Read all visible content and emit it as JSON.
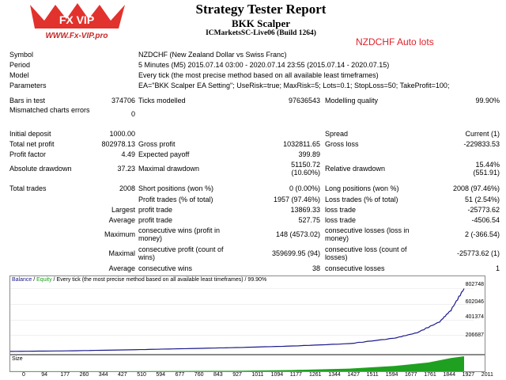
{
  "header": {
    "logo_text": "WWW.Fx-VIP.pro",
    "title": "Strategy Tester Report",
    "subtitle": "BKK Scalper",
    "server": "ICMarketsSC-Live06 (Build 1264)",
    "tag": "NZDCHF Auto lots"
  },
  "info": {
    "symbol_label": "Symbol",
    "symbol": "NZDCHF (New Zealand Dollar vs Swiss Franc)",
    "period_label": "Period",
    "period": "5 Minutes (M5) 2015.07.14 03:00 - 2020.07.14 23:55 (2015.07.14 - 2020.07.15)",
    "model_label": "Model",
    "model": "Every tick (the most precise method based on all available least timeframes)",
    "params_label": "Parameters",
    "params": "EA=\"BKK Scalper EA Setting\"; UseRisk=true; MaxRisk=5; Lots=0.1; StopLoss=50; TakeProfit=100;"
  },
  "stats1": {
    "bars_label": "Bars in test",
    "bars": "374706",
    "ticks_label": "Ticks modelled",
    "ticks": "97636543",
    "quality_label": "Modelling quality",
    "quality": "99.90%",
    "mismatch_label": "Mismatched charts errors",
    "mismatch": "0"
  },
  "stats2": {
    "deposit_label": "Initial deposit",
    "deposit": "1000.00",
    "spread_label": "Spread",
    "spread": "Current (1)",
    "netprofit_label": "Total net profit",
    "netprofit": "802978.13",
    "grossprofit_label": "Gross profit",
    "grossprofit": "1032811.65",
    "grossloss_label": "Gross loss",
    "grossloss": "-229833.53",
    "pf_label": "Profit factor",
    "pf": "4.49",
    "ep_label": "Expected payoff",
    "ep": "399.89",
    "absdd_label": "Absolute drawdown",
    "absdd": "37.23",
    "maxdd_label": "Maximal drawdown",
    "maxdd1": "51150.72",
    "maxdd2": "(10.60%)",
    "reldd_label": "Relative drawdown",
    "reldd1": "15.44%",
    "reldd2": "(551.91)"
  },
  "trades": {
    "total_label": "Total trades",
    "total": "2008",
    "short_label": "Short positions (won %)",
    "short": "0 (0.00%)",
    "long_label": "Long positions (won %)",
    "long": "2008 (97.46%)",
    "profit_trades_label": "Profit trades (% of total)",
    "profit_trades": "1957 (97.46%)",
    "loss_trades_label": "Loss trades (% of total)",
    "loss_trades": "51 (2.54%)",
    "largest_label": "Largest",
    "largest_profit_label": "profit trade",
    "largest_profit": "13869.33",
    "largest_loss_label": "loss trade",
    "largest_loss": "-25773.62",
    "average_label": "Average",
    "avg_profit_label": "profit trade",
    "avg_profit": "527.75",
    "avg_loss_label": "loss trade",
    "avg_loss": "-4506.54",
    "maximum_label": "Maximum",
    "max_wins_label": "consecutive wins (profit in money)",
    "max_wins": "148 (4573.02)",
    "max_losses_label": "consecutive losses (loss in money)",
    "max_losses": "2 (-366.54)",
    "maximal_label": "Maximal",
    "maximal_profit_label": "consecutive profit (count of wins)",
    "maximal_profit": "359699.95 (94)",
    "maximal_loss_label": "consecutive loss (count of losses)",
    "maximal_loss": "-25773.62 (1)",
    "avgcons_label": "Average",
    "avgcons_wins_label": "consecutive wins",
    "avgcons_wins": "38",
    "avgcons_losses_label": "consecutive losses",
    "avgcons_losses": "1"
  },
  "chart": {
    "legend_balance": "Balance",
    "legend_sep": " / ",
    "legend_equity": "Equity",
    "legend_rest": " / Every tick (the most precise method based on all available least timeframes) / 99.90%",
    "size_label": "Size",
    "y_ticks": [
      "802748",
      "602046",
      "401374",
      "206687"
    ],
    "x_ticks": [
      "0",
      "94",
      "177",
      "260",
      "344",
      "427",
      "510",
      "594",
      "677",
      "760",
      "843",
      "927",
      "1011",
      "1094",
      "1177",
      "1261",
      "1344",
      "1427",
      "1511",
      "1594",
      "1677",
      "1761",
      "1844",
      "1927",
      "2011"
    ],
    "balance_color": "#1a1a8c",
    "equity_color": "#18a018",
    "size_color": "#20a020"
  },
  "chart_data": {
    "type": "line",
    "x": [
      0,
      250,
      500,
      750,
      1000,
      1250,
      1500,
      1700,
      1800,
      1900,
      1950,
      2008
    ],
    "series": [
      {
        "name": "Balance",
        "values": [
          1000,
          8000,
          20000,
          35000,
          50000,
          70000,
          100000,
          170000,
          240000,
          380000,
          530000,
          803978
        ]
      }
    ],
    "y_ticks": [
      206687,
      401374,
      602046,
      802748
    ],
    "xlim": [
      0,
      2050
    ],
    "ylim": [
      0,
      880000
    ],
    "size_values_x": [
      0,
      500,
      1000,
      1250,
      1500,
      1700,
      1850,
      1950,
      2008
    ],
    "size_values": [
      0.1,
      0.1,
      0.6,
      1.5,
      3.0,
      6.0,
      10.0,
      15.0,
      17.0
    ]
  }
}
